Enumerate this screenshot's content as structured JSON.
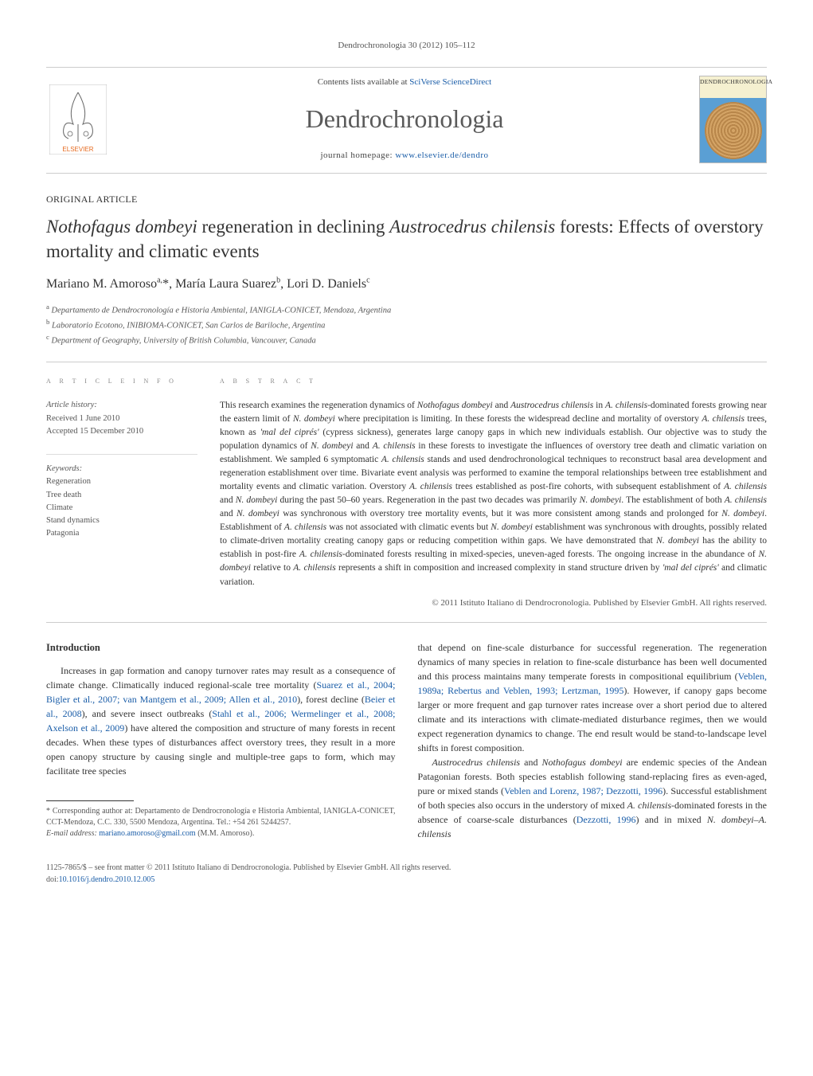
{
  "journal_ref": "Dendrochronologia 30 (2012) 105–112",
  "header": {
    "contents_text": "Contents lists available at ",
    "contents_link": "SciVerse ScienceDirect",
    "journal_name": "Dendrochronologia",
    "homepage_text": "journal homepage: ",
    "homepage_link": "www.elsevier.de/dendro",
    "cover_label": "DENDROCHRONOLOGIA"
  },
  "article_type": "ORIGINAL ARTICLE",
  "title_parts": {
    "p1": "Nothofagus dombeyi",
    "p2": " regeneration in declining ",
    "p3": "Austrocedrus chilensis",
    "p4": " forests: Effects of overstory mortality and climatic events"
  },
  "authors_html": "Mariano M. Amoroso<sup>a,</sup>*, María Laura Suarez<sup>b</sup>, Lori D. Daniels<sup>c</sup>",
  "affiliations": [
    "a Departamento de Dendrocronología e Historia Ambiental, IANIGLA-CONICET, Mendoza, Argentina",
    "b Laboratorio Ecotono, INIBIOMA-CONICET, San Carlos de Bariloche, Argentina",
    "c Department of Geography, University of British Columbia, Vancouver, Canada"
  ],
  "info": {
    "heading": "a r t i c l e   i n f o",
    "history_label": "Article history:",
    "received": "Received 1 June 2010",
    "accepted": "Accepted 15 December 2010",
    "keywords_label": "Keywords:",
    "keywords": [
      "Regeneration",
      "Tree death",
      "Climate",
      "Stand dynamics",
      "Patagonia"
    ]
  },
  "abstract": {
    "heading": "a b s t r a c t",
    "text": "This research examines the regeneration dynamics of Nothofagus dombeyi and Austrocedrus chilensis in A. chilensis-dominated forests growing near the eastern limit of N. dombeyi where precipitation is limiting. In these forests the widespread decline and mortality of overstory A. chilensis trees, known as 'mal del ciprés' (cypress sickness), generates large canopy gaps in which new individuals establish. Our objective was to study the population dynamics of N. dombeyi and A. chilensis in these forests to investigate the influences of overstory tree death and climatic variation on establishment. We sampled 6 symptomatic A. chilensis stands and used dendrochronological techniques to reconstruct basal area development and regeneration establishment over time. Bivariate event analysis was performed to examine the temporal relationships between tree establishment and mortality events and climatic variation. Overstory A. chilensis trees established as post-fire cohorts, with subsequent establishment of A. chilensis and N. dombeyi during the past 50–60 years. Regeneration in the past two decades was primarily N. dombeyi. The establishment of both A. chilensis and N. dombeyi was synchronous with overstory tree mortality events, but it was more consistent among stands and prolonged for N. dombeyi. Establishment of A. chilensis was not associated with climatic events but N. dombeyi establishment was synchronous with droughts, possibly related to climate-driven mortality creating canopy gaps or reducing competition within gaps. We have demonstrated that N. dombeyi has the ability to establish in post-fire A. chilensis-dominated forests resulting in mixed-species, uneven-aged forests. The ongoing increase in the abundance of N. dombeyi relative to A. chilensis represents a shift in composition and increased complexity in stand structure driven by 'mal del ciprés' and climatic variation.",
    "copyright": "© 2011 Istituto Italiano di Dendrocronologia. Published by Elsevier GmbH. All rights reserved."
  },
  "body": {
    "intro_heading": "Introduction",
    "col1_p1_pre": "Increases in gap formation and canopy turnover rates may result as a consequence of climate change. Climatically induced regional-scale tree mortality (",
    "col1_p1_link1": "Suarez et al., 2004; Bigler et al., 2007; van Mantgem et al., 2009; Allen et al., 2010",
    "col1_p1_mid1": "), forest decline (",
    "col1_p1_link2": "Beier et al., 2008",
    "col1_p1_mid2": "), and severe insect outbreaks (",
    "col1_p1_link3": "Stahl et al., 2006; Wermelinger et al., 2008; Axelson et al., 2009",
    "col1_p1_post": ") have altered the composition and structure of many forests in recent decades. When these types of disturbances affect overstory trees, they result in a more open canopy structure by causing single and multiple-tree gaps to form, which may facilitate tree species",
    "col2_p1_pre": "that depend on fine-scale disturbance for successful regeneration. The regeneration dynamics of many species in relation to fine-scale disturbance has been well documented and this process maintains many temperate forests in compositional equilibrium (",
    "col2_p1_link1": "Veblen, 1989a; Rebertus and Veblen, 1993; Lertzman, 1995",
    "col2_p1_post": "). However, if canopy gaps become larger or more frequent and gap turnover rates increase over a short period due to altered climate and its interactions with climate-mediated disturbance regimes, then we would expect regeneration dynamics to change. The end result would be stand-to-landscape level shifts in forest composition.",
    "col2_p2_i1": "Austrocedrus chilensis",
    "col2_p2_t1": " and ",
    "col2_p2_i2": "Nothofagus dombeyi",
    "col2_p2_t2": " are endemic species of the Andean Patagonian forests. Both species establish following stand-replacing fires as even-aged, pure or mixed stands (",
    "col2_p2_link1": "Veblen and Lorenz, 1987; Dezzotti, 1996",
    "col2_p2_t3": "). Successful establishment of both species also occurs in the understory of mixed ",
    "col2_p2_i3": "A. chilensis",
    "col2_p2_t4": "-dominated forests in the absence of coarse-scale disturbances (",
    "col2_p2_link2": "Dezzotti, 1996",
    "col2_p2_t5": ") and in mixed ",
    "col2_p2_i4": "N. dombeyi–A. chilensis"
  },
  "footnote": {
    "corr_label": "* Corresponding author at: Departamento de Dendrocronología e Historia Ambiental, IANIGLA-CONICET, CCT-Mendoza, C.C. 330, 5500 Mendoza, Argentina. Tel.: +54 261 5244257.",
    "email_label": "E-mail address: ",
    "email": "mariano.amoroso@gmail.com",
    "email_suffix": " (M.M. Amoroso)."
  },
  "footer": {
    "line1": "1125-7865/$ – see front matter © 2011 Istituto Italiano di Dendrocronologia. Published by Elsevier GmbH. All rights reserved.",
    "doi_label": "doi:",
    "doi": "10.1016/j.dendro.2010.12.005"
  },
  "colors": {
    "link": "#1a5da8",
    "text": "#333333",
    "muted": "#555555",
    "rule": "#cccccc"
  }
}
